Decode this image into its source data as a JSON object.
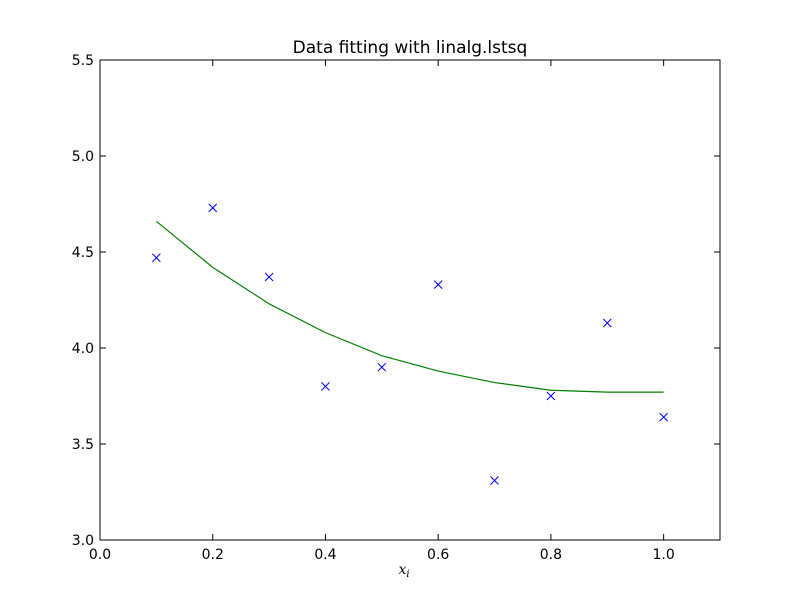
{
  "chart_data": {
    "type": "scatter",
    "title": "Data fitting with linalg.lstsq",
    "xlabel": "x",
    "xlabel_subscript": "i",
    "ylabel": "",
    "xlim": [
      0.0,
      1.1
    ],
    "ylim": [
      3.0,
      5.5
    ],
    "x_ticks": [
      "0.0",
      "0.2",
      "0.4",
      "0.6",
      "0.8",
      "1.0"
    ],
    "y_ticks": [
      "3.0",
      "3.5",
      "4.0",
      "4.5",
      "5.0",
      "5.5"
    ],
    "grid": false,
    "series": [
      {
        "kind": "markers",
        "marker": "x",
        "color": "#0000ff",
        "x": [
          0.1,
          0.2,
          0.3,
          0.4,
          0.5,
          0.6,
          0.7,
          0.8,
          0.9,
          1.0
        ],
        "y": [
          4.47,
          4.73,
          4.37,
          3.8,
          3.9,
          4.33,
          3.31,
          3.75,
          4.13,
          3.64
        ]
      },
      {
        "kind": "line",
        "color": "#008000",
        "x": [
          0.1,
          0.2,
          0.3,
          0.4,
          0.5,
          0.6,
          0.7,
          0.8,
          0.9,
          1.0
        ],
        "y": [
          4.66,
          4.42,
          4.23,
          4.08,
          3.96,
          3.88,
          3.82,
          3.78,
          3.77,
          3.77
        ]
      }
    ]
  }
}
